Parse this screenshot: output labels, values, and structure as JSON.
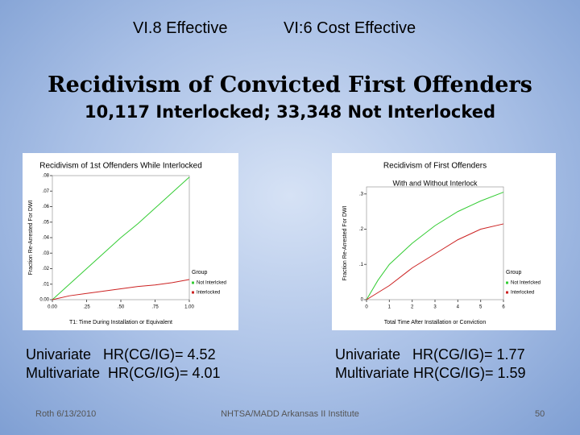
{
  "slide": {
    "top_left": "VI.8 Effective",
    "top_right": "VI:6 Cost Effective",
    "title": "Recidivism of Convicted First Offenders",
    "subtitle": "10,117 Interlocked; 33,348 Not Interlocked",
    "left_stats": [
      "Univariate   HR(CG/IG)= 4.52",
      "Multivariate  HR(CG/IG)= 4.01"
    ],
    "right_stats": [
      "Univariate   HR(CG/IG)= 1.77",
      "Multivariate HR(CG/IG)= 1.59"
    ],
    "footer_left": "Roth 6/13/2010",
    "footer_center": "NHTSA/MADD Arkansas II Institute",
    "footer_right": "50"
  },
  "chart_data": [
    {
      "type": "line",
      "title": "Recidivism of 1st Offenders While Interlocked",
      "x_label": "T1: Time During Installation or Equivalent",
      "y_label": "Fraction Re-Arrested For DWI",
      "x": [
        0,
        0.125,
        0.25,
        0.375,
        0.5,
        0.625,
        0.75,
        0.875,
        1
      ],
      "series": [
        {
          "name": "Not Interlcked",
          "color": "#33cc33",
          "values": [
            0,
            0.01,
            0.02,
            0.03,
            0.04,
            0.049,
            0.059,
            0.069,
            0.079
          ]
        },
        {
          "name": "Interlocked",
          "color": "#cc2222",
          "values": [
            0,
            0.0025,
            0.004,
            0.0055,
            0.007,
            0.0085,
            0.0095,
            0.011,
            0.013
          ]
        }
      ],
      "xlim": [
        0,
        1
      ],
      "ylim": [
        0,
        0.08
      ],
      "xticks": [
        {
          "value": 0,
          "label": "0.00"
        },
        {
          "value": 0.25,
          "label": ".25"
        },
        {
          "value": 0.5,
          "label": ".50"
        },
        {
          "value": 0.75,
          "label": ".75"
        },
        {
          "value": 1,
          "label": "1.00"
        }
      ],
      "yticks": [
        {
          "value": 0,
          "label": "0.00"
        },
        {
          "value": 0.01,
          "label": ".01"
        },
        {
          "value": 0.02,
          "label": ".02"
        },
        {
          "value": 0.03,
          "label": ".03"
        },
        {
          "value": 0.04,
          "label": ".04"
        },
        {
          "value": 0.05,
          "label": ".05"
        },
        {
          "value": 0.06,
          "label": ".06"
        },
        {
          "value": 0.07,
          "label": ".07"
        },
        {
          "value": 0.08,
          "label": ".08"
        }
      ],
      "legend_title": "Group",
      "legend": "lower right"
    },
    {
      "type": "line",
      "title": "Recidivism of First Offenders",
      "subtitle": "With and Without Interlock",
      "x_label": "Total Time After Installation or Conviction",
      "y_label": "Fraction Re-Arrested For DWI",
      "x": [
        0,
        0.5,
        1,
        2,
        3,
        4,
        5,
        6
      ],
      "series": [
        {
          "name": "Not Interlcked",
          "color": "#33cc33",
          "values": [
            0,
            0.055,
            0.1,
            0.16,
            0.21,
            0.25,
            0.28,
            0.305
          ]
        },
        {
          "name": "Interlocked",
          "color": "#cc2222",
          "values": [
            0,
            0.02,
            0.04,
            0.09,
            0.13,
            0.17,
            0.2,
            0.215
          ]
        }
      ],
      "xlim": [
        0,
        6
      ],
      "ylim": [
        0,
        0.32
      ],
      "xticks": [
        0,
        1,
        2,
        3,
        4,
        5,
        6
      ],
      "yticks": [
        0,
        {
          "value": 0.1,
          "label": ".1"
        },
        {
          "value": 0.2,
          "label": ".2"
        },
        {
          "value": 0.3,
          "label": ".3"
        }
      ],
      "legend_title": "Group",
      "legend": "lower right"
    }
  ]
}
